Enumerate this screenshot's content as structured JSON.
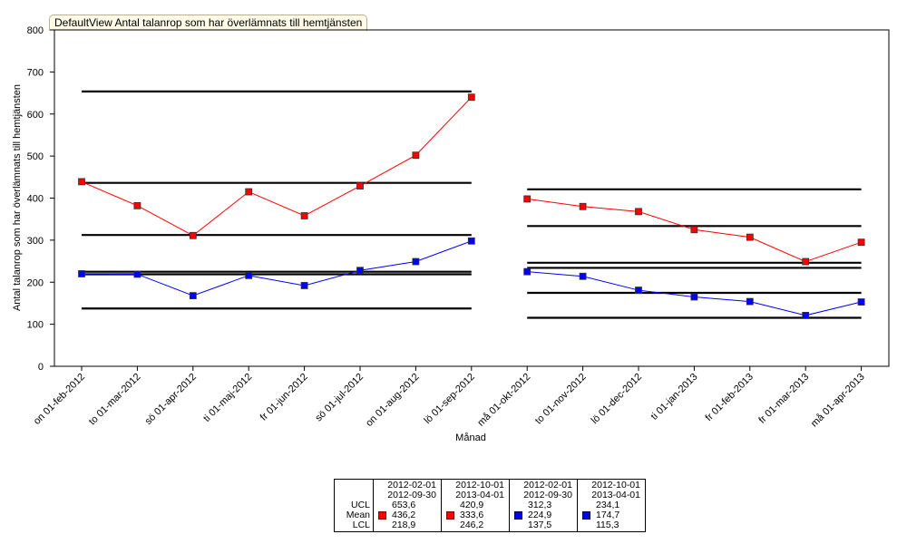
{
  "title": "DefaultView Antal talanrop som har överlämnats till hemtjänsten",
  "chart_data": {
    "type": "line",
    "xlabel": "Månad",
    "ylabel": "Antal talanrop som har överlämnats till hemtjänsten",
    "ylim": [
      0,
      800
    ],
    "yticks": [
      0,
      100,
      200,
      300,
      400,
      500,
      600,
      700,
      800
    ],
    "categories": [
      "on 01-feb-2012",
      "to 01-mar-2012",
      "sö 01-apr-2012",
      "ti 01-maj-2012",
      "fr 01-jun-2012",
      "sö 01-jul-2012",
      "on 01-aug-2012",
      "lö 01-sep-2012",
      "må 01-okt-2012",
      "to 01-nov-2012",
      "lö 01-dec-2012",
      "ti 01-jan-2013",
      "fr 01-feb-2013",
      "fr 01-mar-2013",
      "må 01-apr-2013"
    ],
    "grid": false,
    "series": [
      {
        "color": "#ff0000",
        "segments": [
          {
            "start": 0,
            "values": [
              439,
              382,
              311,
              415,
              358,
              429,
              502,
              640
            ]
          },
          {
            "start": 8,
            "values": [
              398,
              380,
              368,
              325,
              307,
              249,
              295
            ]
          }
        ]
      },
      {
        "color": "#0000ff",
        "segments": [
          {
            "start": 0,
            "values": [
              220,
              219,
              168,
              216,
              192,
              228,
              249,
              298
            ]
          },
          {
            "start": 8,
            "values": [
              225,
              214,
              181,
              165,
              154,
              121,
              153
            ]
          }
        ]
      }
    ],
    "control_lines": [
      {
        "from": 0,
        "to": 7,
        "values": [
          653.6,
          436.2,
          218.9
        ]
      },
      {
        "from": 0,
        "to": 7,
        "values": [
          312.3,
          224.9,
          137.5
        ]
      },
      {
        "from": 8,
        "to": 14,
        "values": [
          420.9,
          333.6,
          246.2
        ]
      },
      {
        "from": 8,
        "to": 14,
        "values": [
          234.1,
          174.7,
          115.3
        ]
      }
    ]
  },
  "legend": {
    "row_labels": [
      "UCL",
      "Mean",
      "LCL"
    ],
    "columns": [
      {
        "color": "#ff0000",
        "date_from": "2012-02-01",
        "date_to": "2012-09-30",
        "ucl": "653,6",
        "mean": "436,2",
        "lcl": "218,9"
      },
      {
        "color": "#ff0000",
        "date_from": "2012-10-01",
        "date_to": "2013-04-01",
        "ucl": "420,9",
        "mean": "333,6",
        "lcl": "246,2"
      },
      {
        "color": "#0000ff",
        "date_from": "2012-02-01",
        "date_to": "2012-09-30",
        "ucl": "312,3",
        "mean": "224,9",
        "lcl": "137,5"
      },
      {
        "color": "#0000ff",
        "date_from": "2012-10-01",
        "date_to": "2013-04-01",
        "ucl": "234,1",
        "mean": "174,7",
        "lcl": "115,3"
      }
    ]
  }
}
